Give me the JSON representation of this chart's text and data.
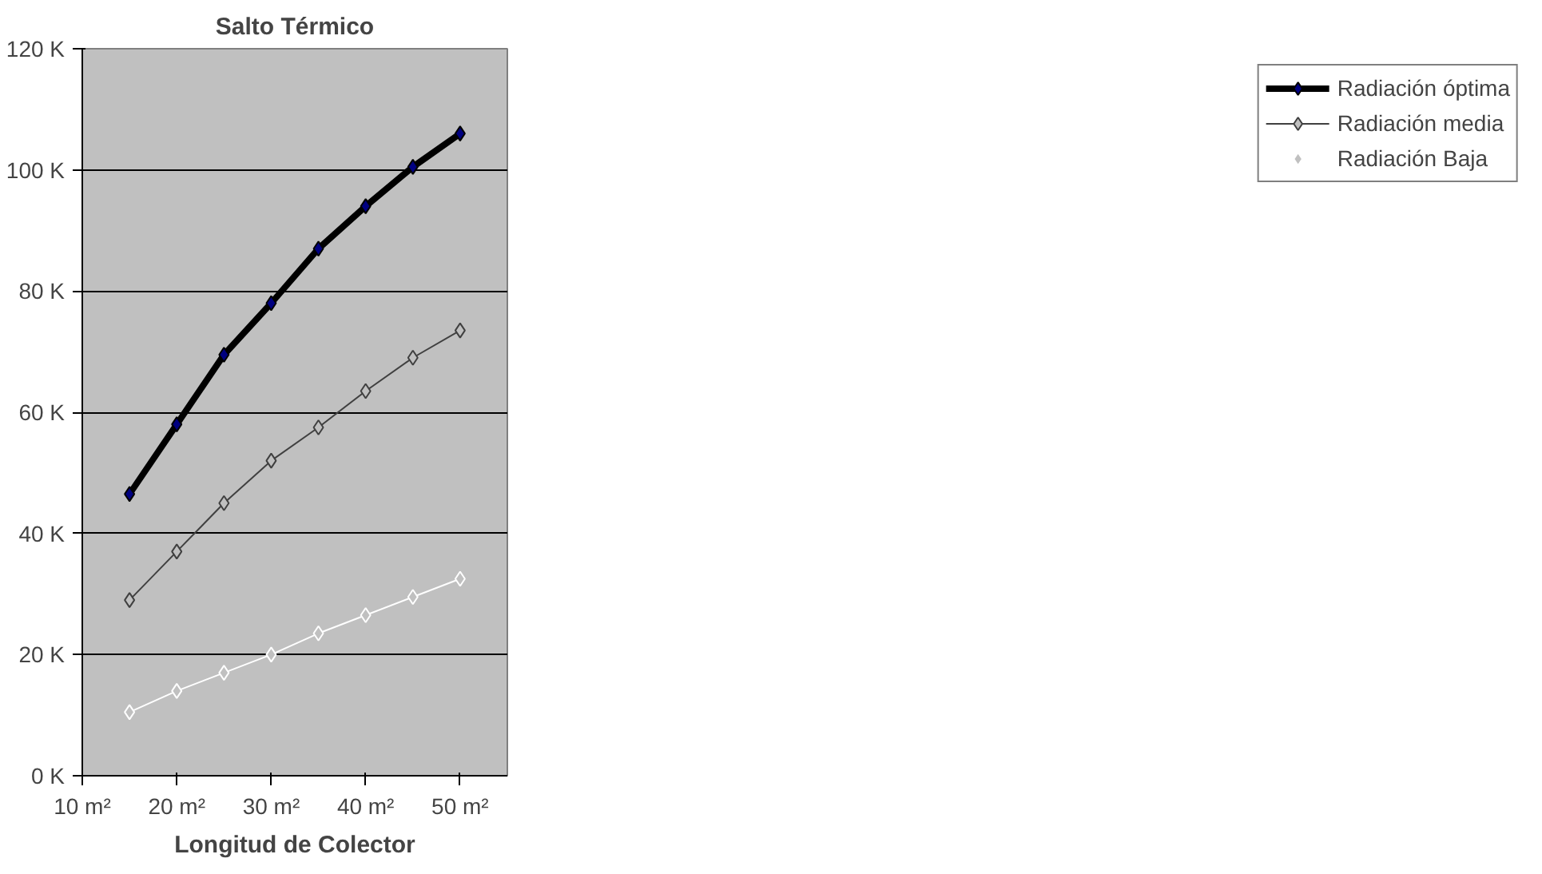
{
  "chart_data": {
    "type": "line",
    "title": "Salto Térmico",
    "xlabel": "Longitud de Colector",
    "x": [
      15,
      20,
      25,
      30,
      35,
      40,
      45,
      50
    ],
    "xlim": [
      10,
      55
    ],
    "xticks": [
      {
        "value": 10,
        "label": "10 m²"
      },
      {
        "value": 20,
        "label": "20 m²"
      },
      {
        "value": 30,
        "label": "30 m²"
      },
      {
        "value": 40,
        "label": "40 m²"
      },
      {
        "value": 50,
        "label": "50 m²"
      }
    ],
    "ylim": [
      0,
      120
    ],
    "yticks": [
      {
        "value": 0,
        "label": "0 K"
      },
      {
        "value": 20,
        "label": "20 K"
      },
      {
        "value": 40,
        "label": "40 K"
      },
      {
        "value": 60,
        "label": "60 K"
      },
      {
        "value": 80,
        "label": "80 K"
      },
      {
        "value": 100,
        "label": "100 K"
      },
      {
        "value": 120,
        "label": "120 K"
      }
    ],
    "series": [
      {
        "name": "Radiación óptima",
        "color": "#000000",
        "values": [
          46.5,
          58,
          69.5,
          78,
          87,
          94,
          100.5,
          106
        ]
      },
      {
        "name": "Radiación media",
        "color": "#404040",
        "values": [
          29,
          37,
          45,
          52,
          57.5,
          63.5,
          69,
          73.5
        ]
      },
      {
        "name": "Radiación Baja",
        "color": "#ffffff",
        "values": [
          10.5,
          14,
          17,
          20,
          23.5,
          26.5,
          29.5,
          32.5
        ]
      }
    ],
    "grid": "y",
    "legend": "right",
    "marker": "diamond",
    "line_style": "solid"
  }
}
